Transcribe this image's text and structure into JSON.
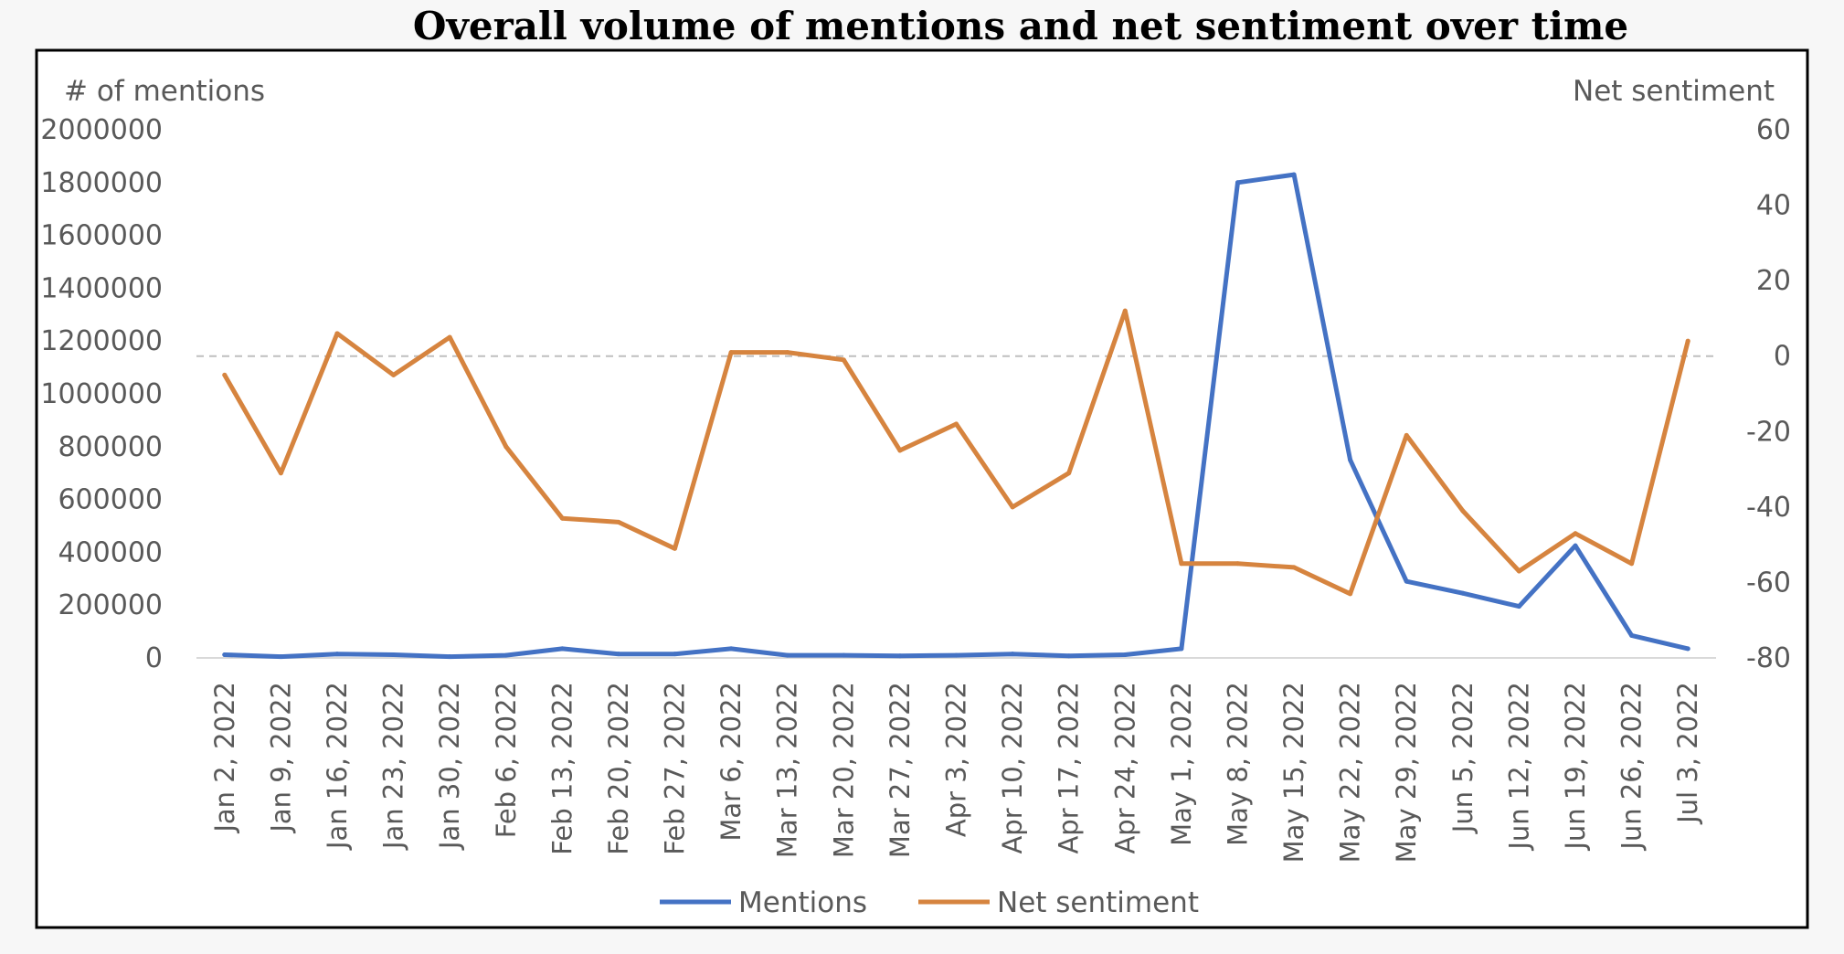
{
  "chart_data": {
    "type": "line",
    "title": "Overall volume of mentions and net sentiment over time",
    "y_left_label": "# of mentions",
    "y_right_label": "Net sentiment",
    "y_left_ticks": [
      "2000000",
      "1800000",
      "1600000",
      "1400000",
      "1200000",
      "1000000",
      "800000",
      "600000",
      "400000",
      "200000",
      "0"
    ],
    "y_right_ticks": [
      "60",
      "40",
      "20",
      "0",
      "-20",
      "-40",
      "-60",
      "-80"
    ],
    "y_left_range": [
      0,
      2000000
    ],
    "y_right_range": [
      -80,
      60
    ],
    "categories": [
      "Jan 2, 2022",
      "Jan 9, 2022",
      "Jan 16, 2022",
      "Jan 23, 2022",
      "Jan 30, 2022",
      "Feb 6, 2022",
      "Feb 13, 2022",
      "Feb 20, 2022",
      "Feb 27, 2022",
      "Mar 6, 2022",
      "Mar 13, 2022",
      "Mar 20, 2022",
      "Mar 27, 2022",
      "Apr 3, 2022",
      "Apr 10, 2022",
      "Apr 17, 2022",
      "Apr 24, 2022",
      "May 1, 2022",
      "May 8, 2022",
      "May 15, 2022",
      "May 22, 2022",
      "May 29, 2022",
      "Jun 5, 2022",
      "Jun 12, 2022",
      "Jun 19, 2022",
      "Jun 26, 2022",
      "Jul 3, 2022"
    ],
    "zero_reference_line": "dashed, right axis 0",
    "legend_position": "bottom",
    "series": [
      {
        "name": "Mentions",
        "axis": "left",
        "color": "#4472C4",
        "values": [
          12000,
          5000,
          15000,
          12000,
          5000,
          10000,
          35000,
          15000,
          15000,
          35000,
          10000,
          10000,
          8000,
          10000,
          15000,
          8000,
          12000,
          35000,
          1800000,
          1830000,
          750000,
          290000,
          245000,
          195000,
          425000,
          85000,
          35000
        ]
      },
      {
        "name": "Net sentiment",
        "axis": "right",
        "color": "#D6843F",
        "values": [
          -5,
          -31,
          6,
          -5,
          5,
          -24,
          -43,
          -44,
          -51,
          1,
          1,
          -1,
          -25,
          -18,
          -40,
          -31,
          12,
          -55,
          -55,
          -56,
          -63,
          -21,
          -41,
          -57,
          -47,
          -55,
          4
        ]
      }
    ]
  }
}
